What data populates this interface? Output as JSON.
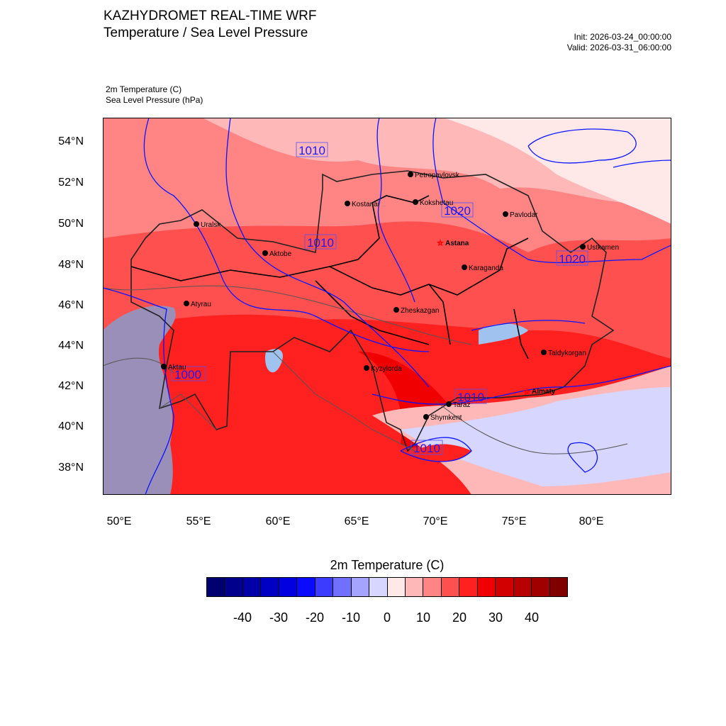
{
  "header": {
    "title": "KAZHYDROMET REAL-TIME WRF",
    "subtitle": "Temperature / Sea Level Pressure",
    "init": "Init: 2026-03-24_00:00:00",
    "valid": "Valid: 2026-03-31_06:00:00",
    "field1": "2m Temperature   (C)",
    "field2": "Sea Level Pressure   (hPa)"
  },
  "axes": {
    "lat_labels": [
      "54°N",
      "52°N",
      "50°N",
      "48°N",
      "46°N",
      "44°N",
      "42°N",
      "40°N",
      "38°N"
    ],
    "lon_labels": [
      "50°E",
      "55°E",
      "60°E",
      "65°E",
      "70°E",
      "75°E",
      "80°E"
    ]
  },
  "cities": {
    "petropavlovsk": "Petropavlovsk",
    "kokshetau": "Kokshetau",
    "kostanai": "Kostanai",
    "pavlodar": "Pavlodar",
    "uralsk": "Uralsk",
    "astana": "Astana",
    "aktobe": "Aktobe",
    "ustkamen": "Ustkamen",
    "karaganda": "Karaganda",
    "atyrau": "Atyrau",
    "zheskazgan": "Zheskazgan",
    "taldykorgan": "Taldykorgan",
    "aktau": "Aktau",
    "kyzylorda": "Kyzylorda",
    "almaty": "Almaty",
    "taraz": "Taraz",
    "shymkent": "Shymkent"
  },
  "isobar_labels": [
    "1010",
    "1020",
    "1010",
    "1020",
    "1000",
    "1010",
    "1010"
  ],
  "colorbar": {
    "title": "2m Temperature  (C)",
    "colors": [
      "#00006e",
      "#00008c",
      "#0000a8",
      "#0000c4",
      "#0000e0",
      "#0a0aff",
      "#3c3cff",
      "#7070ff",
      "#a4a4ff",
      "#d6d6ff",
      "#ffe8e8",
      "#ffb8b8",
      "#ff8484",
      "#ff5050",
      "#ff2020",
      "#f00000",
      "#d20000",
      "#b80000",
      "#a00000",
      "#800000"
    ],
    "labels": [
      "-40",
      "-30",
      "-20",
      "-10",
      "0",
      "10",
      "20",
      "30",
      "40"
    ]
  }
}
